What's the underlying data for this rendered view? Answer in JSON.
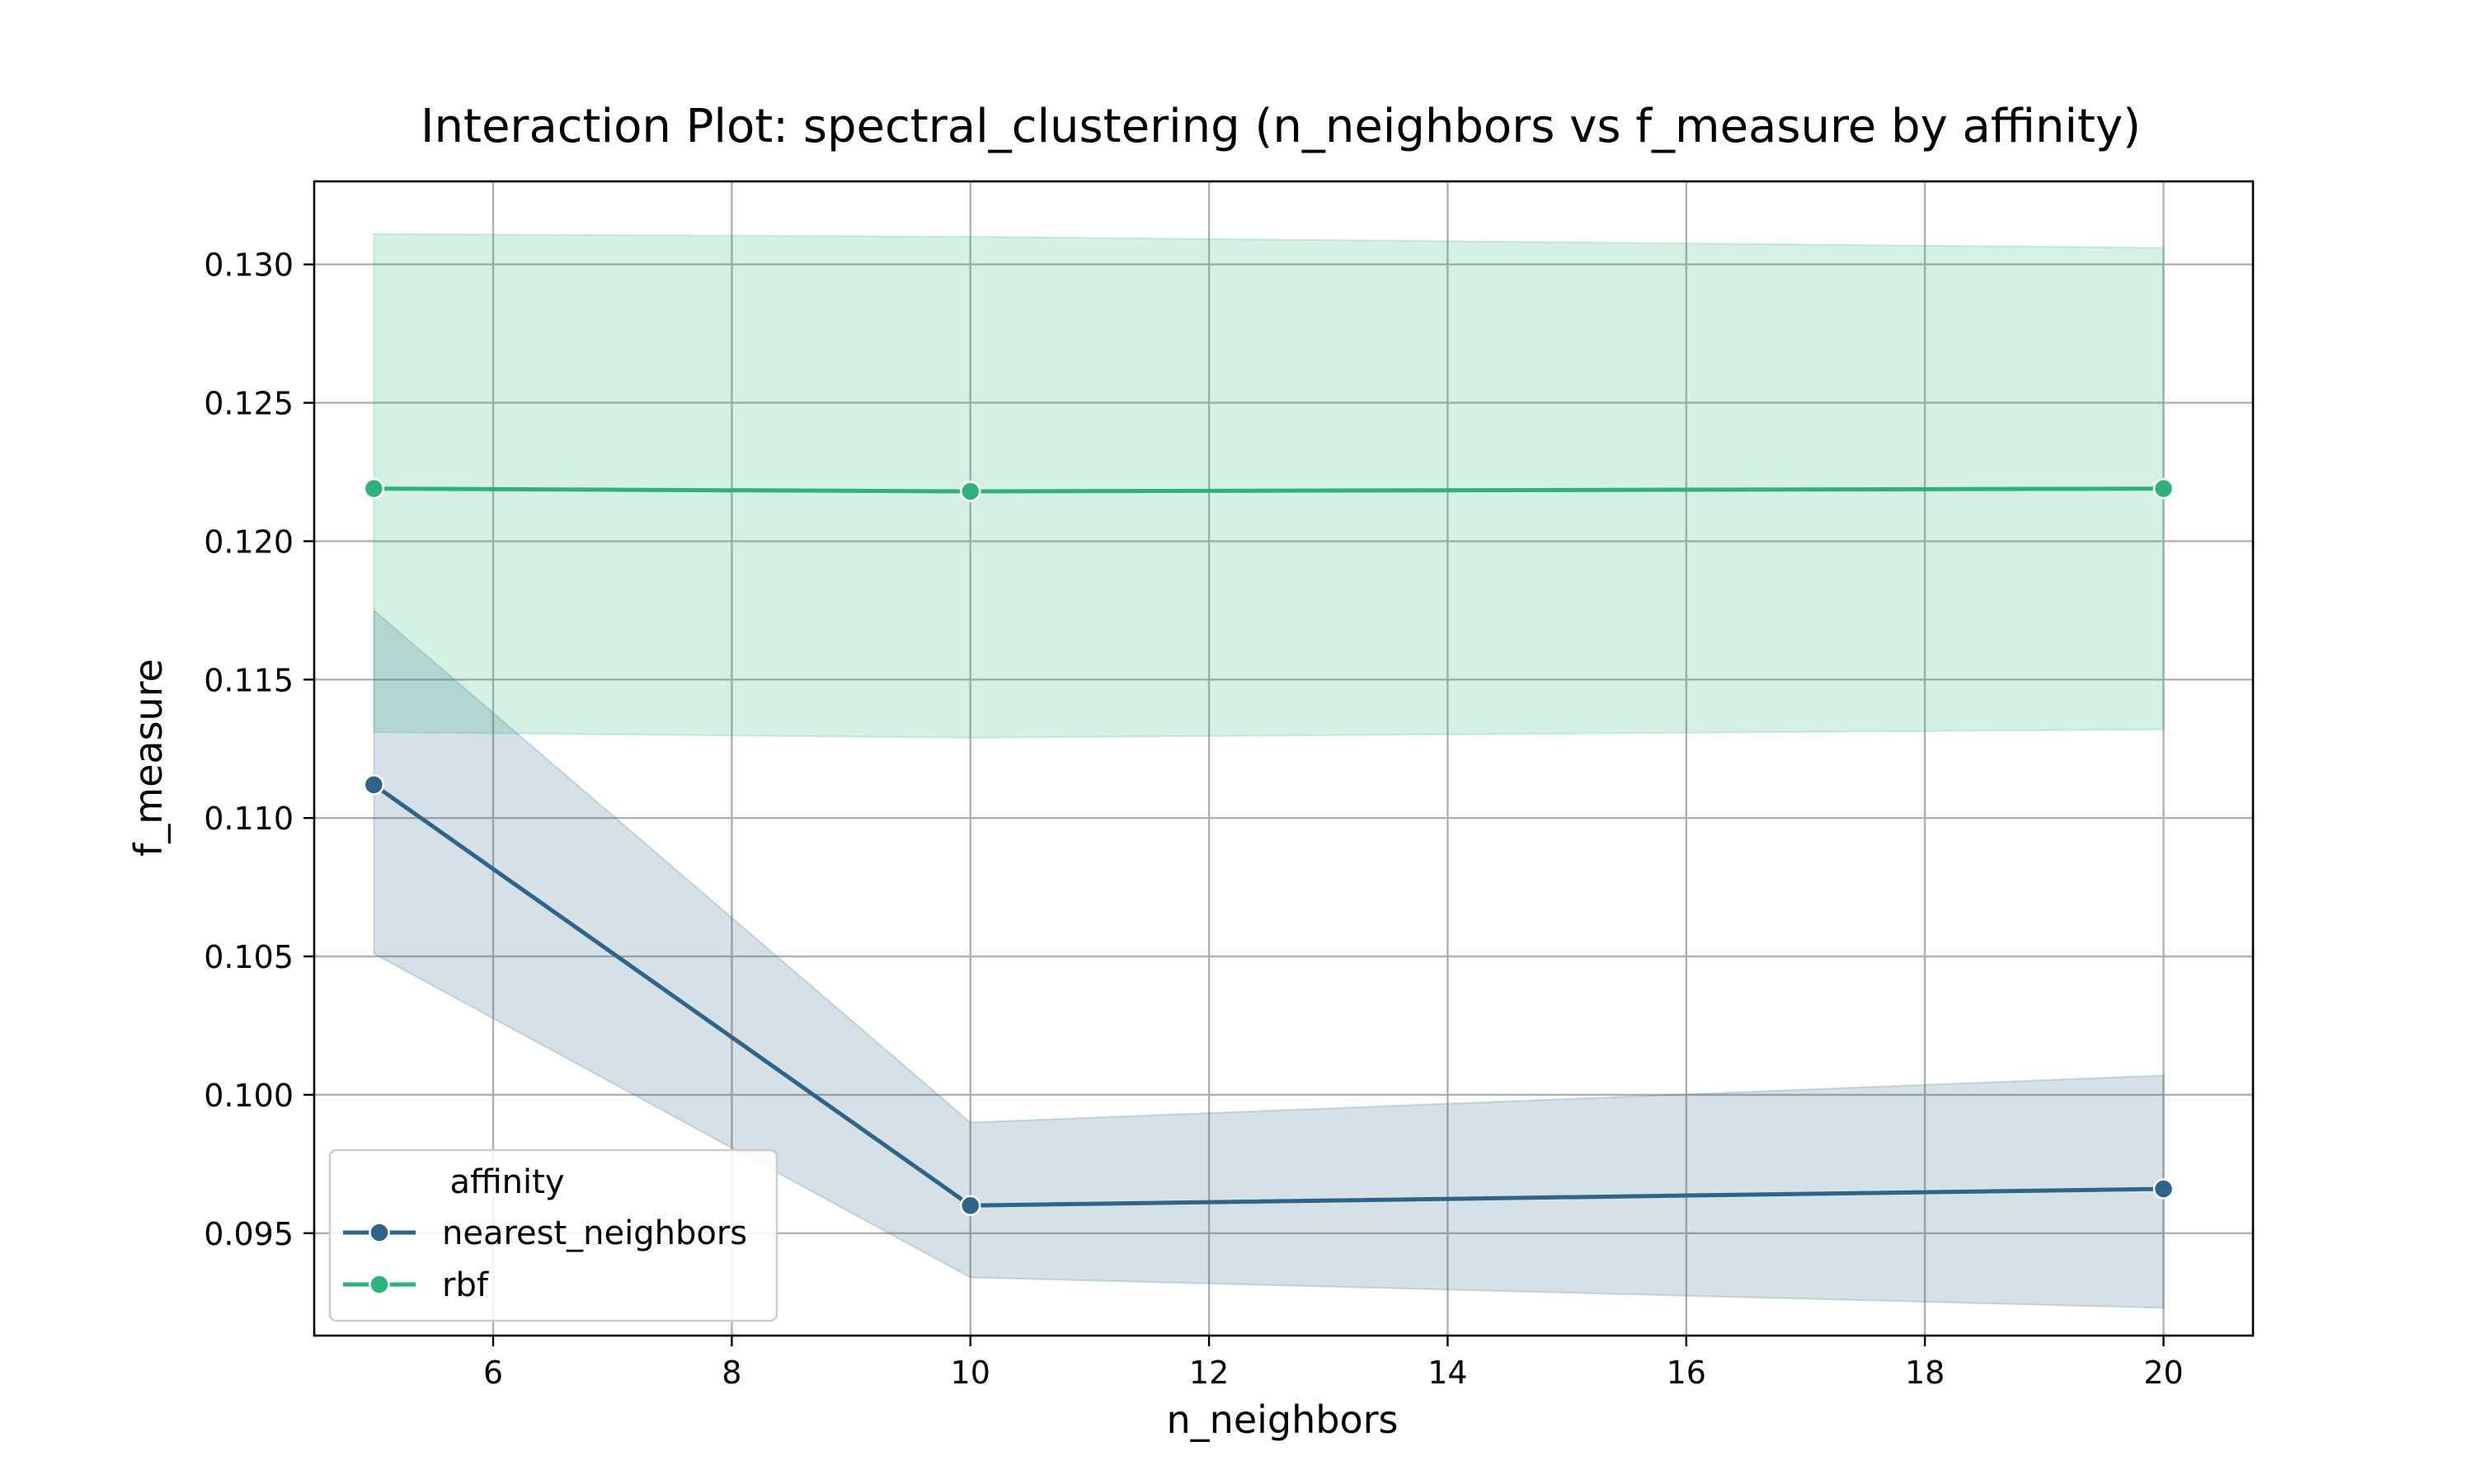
{
  "chart_data": {
    "type": "line",
    "title": "Interaction Plot: spectral_clustering (n_neighbors vs f_measure by affinity)",
    "xlabel": "n_neighbors",
    "ylabel": "f_measure",
    "xlim": [
      4.5,
      20.75
    ],
    "ylim": [
      0.0913,
      0.133
    ],
    "xticks": [
      6,
      8,
      10,
      12,
      14,
      16,
      18,
      20
    ],
    "yticks": [
      0.095,
      0.1,
      0.105,
      0.11,
      0.115,
      0.12,
      0.125,
      0.13
    ],
    "ytick_decimals": 3,
    "grid": true,
    "legend": {
      "title": "affinity",
      "position": "lower-left"
    },
    "series": [
      {
        "name": "nearest_neighbors",
        "color": "#2e6487",
        "x": [
          5,
          10,
          20
        ],
        "y": [
          0.1112,
          0.096,
          0.0966
        ],
        "ci_lower": [
          0.1051,
          0.0934,
          0.0923
        ],
        "ci_upper": [
          0.1175,
          0.099,
          0.1007
        ]
      },
      {
        "name": "rbf",
        "color": "#2fb27a",
        "x": [
          5,
          10,
          20
        ],
        "y": [
          0.1219,
          0.1218,
          0.1219
        ],
        "ci_lower": [
          0.1131,
          0.1129,
          0.1132
        ],
        "ci_upper": [
          0.1311,
          0.131,
          0.1306
        ]
      }
    ]
  }
}
